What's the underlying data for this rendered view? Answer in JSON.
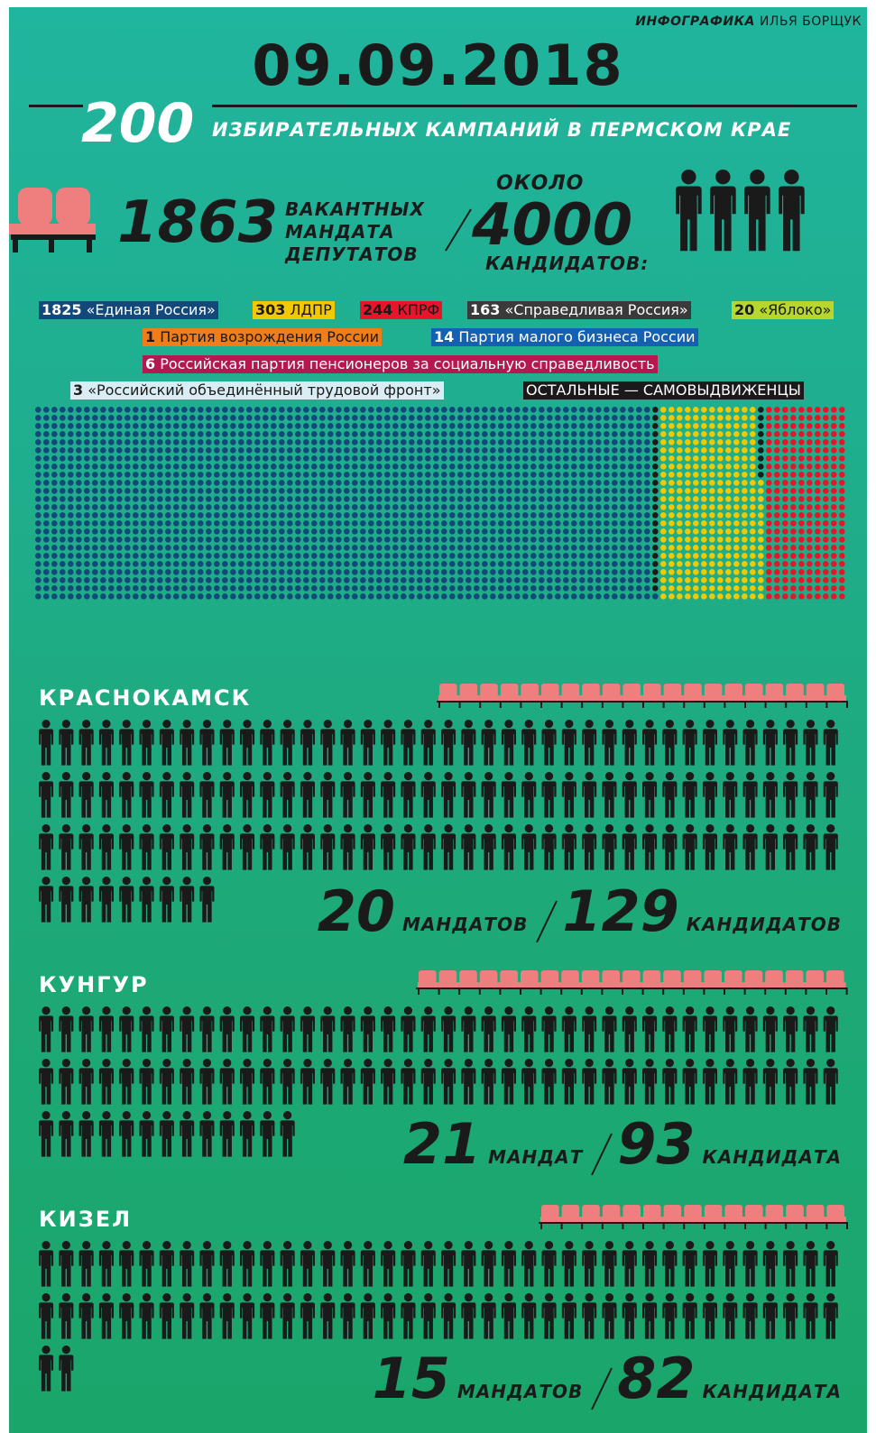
{
  "header": {
    "credit_bold": "ИНФОГРАФИКА",
    "credit_name": "ИЛЬЯ БОРЩУК",
    "date": "09.09.2018",
    "campaigns_count": "200",
    "campaigns_label": "ИЗБИРАТЕЛЬНЫХ КАМПАНИЙ В ПЕРМСКОМ КРАЕ"
  },
  "summary": {
    "mandates_count": "1863",
    "mandates_line1": "ВАКАНТНЫХ",
    "mandates_line2": "МАНДАТА",
    "mandates_line3": "ДЕПУТАТОВ",
    "about": "ОКОЛО",
    "candidates_count": "4000",
    "candidates_label": "КАНДИДАТОВ:"
  },
  "parties": [
    {
      "count": "1825",
      "name": "«Единая Россия»",
      "color": "#13497a",
      "text_color": "#ffffff",
      "dots": 1825
    },
    {
      "count": "303",
      "name": "ЛДПР",
      "color": "#f2c800",
      "text_color": "#1a1a1a",
      "dots": 303
    },
    {
      "count": "244",
      "name": "КПРФ",
      "color": "#e8142a",
      "text_color": "#1a1a1a",
      "dots": 244
    },
    {
      "count": "163",
      "name": "«Справедливая Россия»",
      "color": "#3a3a3a",
      "text_color": "#ffffff",
      "dots": 163
    },
    {
      "count": "20",
      "name": "«Яблоко»",
      "color": "#b7d62e",
      "text_color": "#1a1a1a",
      "dots": 20
    },
    {
      "count": "1",
      "name": "Партия возрождения России",
      "color": "#ef7d1a",
      "text_color": "#1a1a1a",
      "dots": 1
    },
    {
      "count": "14",
      "name": "Партия малого бизнеса России",
      "color": "#1560b0",
      "text_color": "#ffffff",
      "dots": 14
    },
    {
      "count": "6",
      "name": "Российская партия пенсионеров за социальную справедливость",
      "color": "#b5174f",
      "text_color": "#ffffff",
      "dots": 6
    },
    {
      "count": "3",
      "name": "«Российский объединённый трудовой фронт»",
      "color": "#d9eef4",
      "text_color": "#1a1a1a",
      "dots": 3
    },
    {
      "count": "",
      "name": "ОСТАЛЬНЫЕ — САМОВЫДВИЖЕНЦЫ",
      "color": "#1a1a1a",
      "text_color": "#ffffff",
      "dots": 0
    }
  ],
  "colors": {
    "seat": "#ef7f7f",
    "figure": "#1a1a1a",
    "others_dot": "#1a1a1a"
  },
  "cities": [
    {
      "name": "КРАСНОКАМСК",
      "mandates": 20,
      "candidates": 129,
      "mandates_num": "20",
      "mandates_unit": "МАНДАТОВ",
      "candidates_num": "129",
      "candidates_unit": "КАНДИДАТОВ"
    },
    {
      "name": "КУНГУР",
      "mandates": 21,
      "candidates": 93,
      "mandates_num": "21",
      "mandates_unit": "МАНДАТ",
      "candidates_num": "93",
      "candidates_unit": "КАНДИДАТА"
    },
    {
      "name": "КИЗЕЛ",
      "mandates": 15,
      "candidates": 82,
      "mandates_num": "15",
      "mandates_unit": "МАНДАТОВ",
      "candidates_num": "82",
      "candidates_unit": "КАНДИДАТА"
    }
  ]
}
